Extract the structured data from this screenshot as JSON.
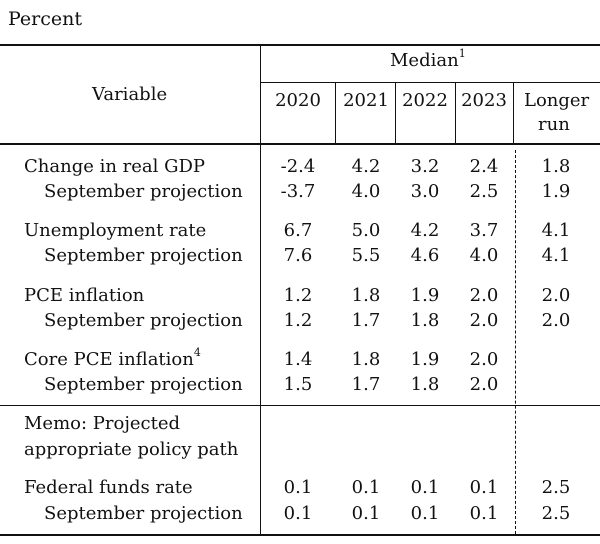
{
  "unit_label": "Percent",
  "header": {
    "variable": "Variable",
    "median": "Median",
    "median_note": "1",
    "years": [
      "2020",
      "2021",
      "2022",
      "2023"
    ],
    "longer_run_line1": "Longer",
    "longer_run_line2": "run"
  },
  "rows": [
    {
      "label": "Change in real GDP",
      "values": [
        "-2.4",
        "4.2",
        "3.2",
        "2.4"
      ],
      "longer": "1.8"
    },
    {
      "label": "September projection",
      "values": [
        "-3.7",
        "4.0",
        "3.0",
        "2.5"
      ],
      "longer": "1.9"
    },
    {
      "label": "Unemployment rate",
      "values": [
        "6.7",
        "5.0",
        "4.2",
        "3.7"
      ],
      "longer": "4.1"
    },
    {
      "label": "September projection",
      "values": [
        "7.6",
        "5.5",
        "4.6",
        "4.0"
      ],
      "longer": "4.1"
    },
    {
      "label": "PCE inflation",
      "values": [
        "1.2",
        "1.8",
        "1.9",
        "2.0"
      ],
      "longer": "2.0"
    },
    {
      "label": "September projection",
      "values": [
        "1.2",
        "1.7",
        "1.8",
        "2.0"
      ],
      "longer": "2.0"
    },
    {
      "label": "Core PCE inflation",
      "note": "4",
      "values": [
        "1.4",
        "1.8",
        "1.9",
        "2.0"
      ],
      "longer": ""
    },
    {
      "label": "September projection",
      "values": [
        "1.5",
        "1.7",
        "1.8",
        "2.0"
      ],
      "longer": ""
    }
  ],
  "memo": {
    "line1": "Memo: Projected",
    "line2": "appropriate policy path"
  },
  "memo_rows": [
    {
      "label": "Federal funds rate",
      "values": [
        "0.1",
        "0.1",
        "0.1",
        "0.1"
      ],
      "longer": "2.5"
    },
    {
      "label": "September projection",
      "values": [
        "0.1",
        "0.1",
        "0.1",
        "0.1"
      ],
      "longer": "2.5"
    }
  ]
}
